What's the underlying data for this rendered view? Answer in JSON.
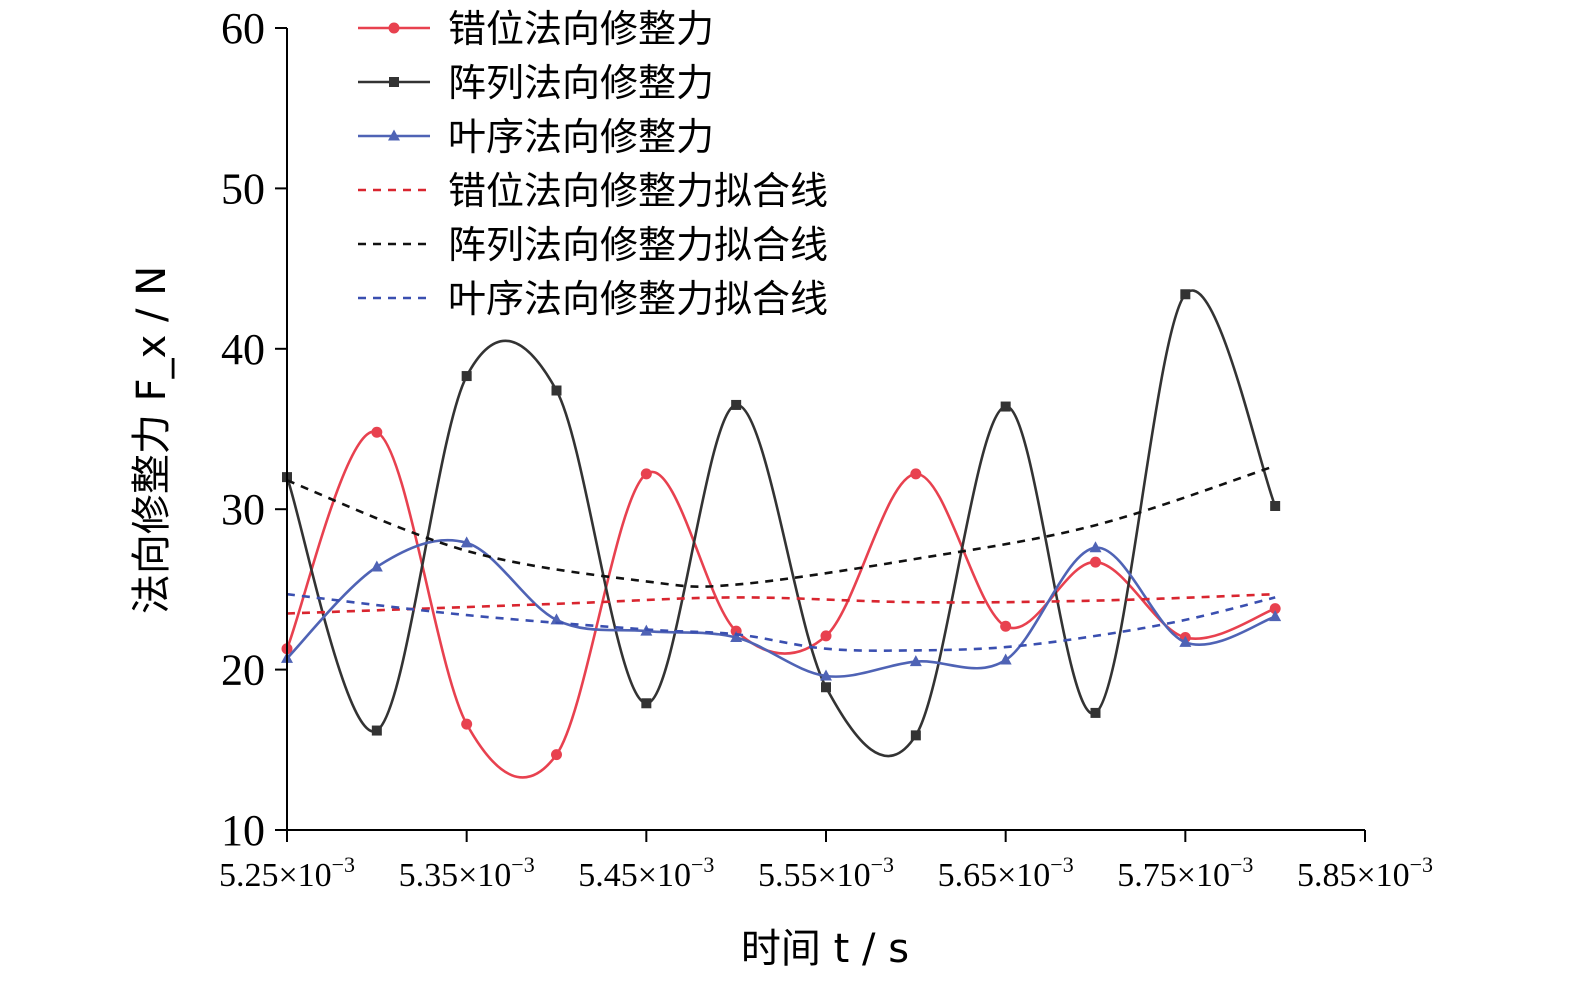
{
  "chart_data": {
    "type": "line",
    "xlabel": "时间 t / s",
    "ylabel": "法向修整力 F_x / N",
    "xlim": [
      0.00525,
      0.00585
    ],
    "ylim": [
      10,
      60
    ],
    "x_ticks": [
      {
        "value": 0.00525,
        "mantissa": "5.25",
        "exp": "−3"
      },
      {
        "value": 0.00535,
        "mantissa": "5.35",
        "exp": "−3"
      },
      {
        "value": 0.00545,
        "mantissa": "5.45",
        "exp": "−3"
      },
      {
        "value": 0.00555,
        "mantissa": "5.55",
        "exp": "−3"
      },
      {
        "value": 0.00565,
        "mantissa": "5.65",
        "exp": "−3"
      },
      {
        "value": 0.00575,
        "mantissa": "5.75",
        "exp": "−3"
      },
      {
        "value": 0.00585,
        "mantissa": "5.85",
        "exp": "−3"
      }
    ],
    "y_ticks": [
      10,
      20,
      30,
      40,
      50,
      60
    ],
    "x_times_label": "×10",
    "legend_position": "top-center",
    "series": [
      {
        "name": "错位法向修整力",
        "color": "#e8414f",
        "marker": "circle",
        "style": "solid",
        "x": [
          0.00525,
          0.0053,
          0.00535,
          0.0054,
          0.00545,
          0.0055,
          0.00555,
          0.0056,
          0.00565,
          0.0057,
          0.00575,
          0.0058
        ],
        "y": [
          21.3,
          34.8,
          16.6,
          14.7,
          32.2,
          22.4,
          22.1,
          32.2,
          22.7,
          26.7,
          22.0,
          23.8
        ]
      },
      {
        "name": "阵列法向修整力",
        "color": "#333333",
        "marker": "square",
        "style": "solid",
        "x": [
          0.00525,
          0.0053,
          0.00535,
          0.0054,
          0.00545,
          0.0055,
          0.00555,
          0.0056,
          0.00565,
          0.0057,
          0.00575,
          0.0058
        ],
        "y": [
          32.0,
          16.2,
          38.3,
          37.4,
          17.9,
          36.5,
          18.9,
          15.9,
          36.4,
          17.3,
          43.4,
          30.2
        ]
      },
      {
        "name": "叶序法向修整力",
        "color": "#4f63b5",
        "marker": "triangle",
        "style": "solid",
        "x": [
          0.00525,
          0.0053,
          0.00535,
          0.0054,
          0.00545,
          0.0055,
          0.00555,
          0.0056,
          0.00565,
          0.0057,
          0.00575,
          0.0058
        ],
        "y": [
          20.7,
          26.4,
          27.9,
          23.1,
          22.4,
          22.0,
          19.6,
          20.5,
          20.6,
          27.6,
          21.7,
          23.3
        ]
      },
      {
        "name": "错位法向修整力拟合线",
        "color": "#d9252f",
        "style": "dashed",
        "x": [
          0.00525,
          0.0054,
          0.0055,
          0.0056,
          0.0057,
          0.0058
        ],
        "y": [
          23.5,
          24.1,
          24.5,
          24.2,
          24.3,
          24.7
        ]
      },
      {
        "name": "阵列法向修整力拟合线",
        "color": "#111111",
        "style": "dashed",
        "x": [
          0.00525,
          0.00535,
          0.00545,
          0.0055,
          0.0056,
          0.0057,
          0.0058
        ],
        "y": [
          31.8,
          27.4,
          25.5,
          25.3,
          26.9,
          29.0,
          32.7
        ]
      },
      {
        "name": "叶序法向修整力拟合线",
        "color": "#3a4fb0",
        "style": "dashed",
        "x": [
          0.00525,
          0.00535,
          0.00545,
          0.0055,
          0.00555,
          0.0056,
          0.00565,
          0.0057,
          0.00575,
          0.0058
        ],
        "y": [
          24.7,
          23.4,
          22.5,
          22.2,
          21.3,
          21.2,
          21.4,
          22.1,
          23.1,
          24.5
        ]
      }
    ]
  }
}
